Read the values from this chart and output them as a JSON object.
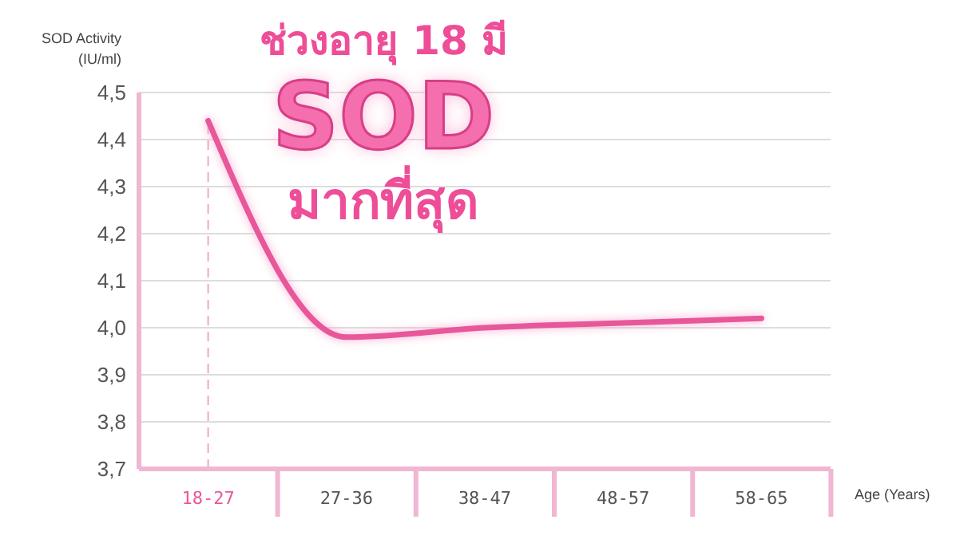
{
  "chart_data": {
    "type": "line",
    "annotations": [
      "ช่วงอายุ 18 มี",
      "SOD",
      "มากที่สุด"
    ],
    "ylabel": "SOD Activity (IU/ml)",
    "xlabel": "Age (Years)",
    "categories": [
      "18-27",
      "27-36",
      "38-47",
      "48-57",
      "58-65"
    ],
    "series": [
      {
        "color": "#e8579a",
        "values": [
          4.44,
          3.98,
          4.0,
          4.01,
          4.02
        ]
      }
    ],
    "ylim": [
      3.7,
      4.5
    ],
    "yticks": [
      {
        "value": 3.7,
        "label": "3,7"
      },
      {
        "value": 3.8,
        "label": "3,8"
      },
      {
        "value": 3.9,
        "label": "3,9"
      },
      {
        "value": 4.0,
        "label": "4,0"
      },
      {
        "value": 4.1,
        "label": "4,1"
      },
      {
        "value": 4.2,
        "label": "4,2"
      },
      {
        "value": 4.3,
        "label": "4,3"
      },
      {
        "value": 4.4,
        "label": "4,4"
      },
      {
        "value": 4.5,
        "label": "4,5"
      }
    ],
    "ref_lines": [
      {
        "axis": "x",
        "value": "18-27",
        "color": "#f2a6c8",
        "line_style": "dashed"
      }
    ],
    "grid": "y",
    "marker": "none",
    "line_style": "solid"
  }
}
